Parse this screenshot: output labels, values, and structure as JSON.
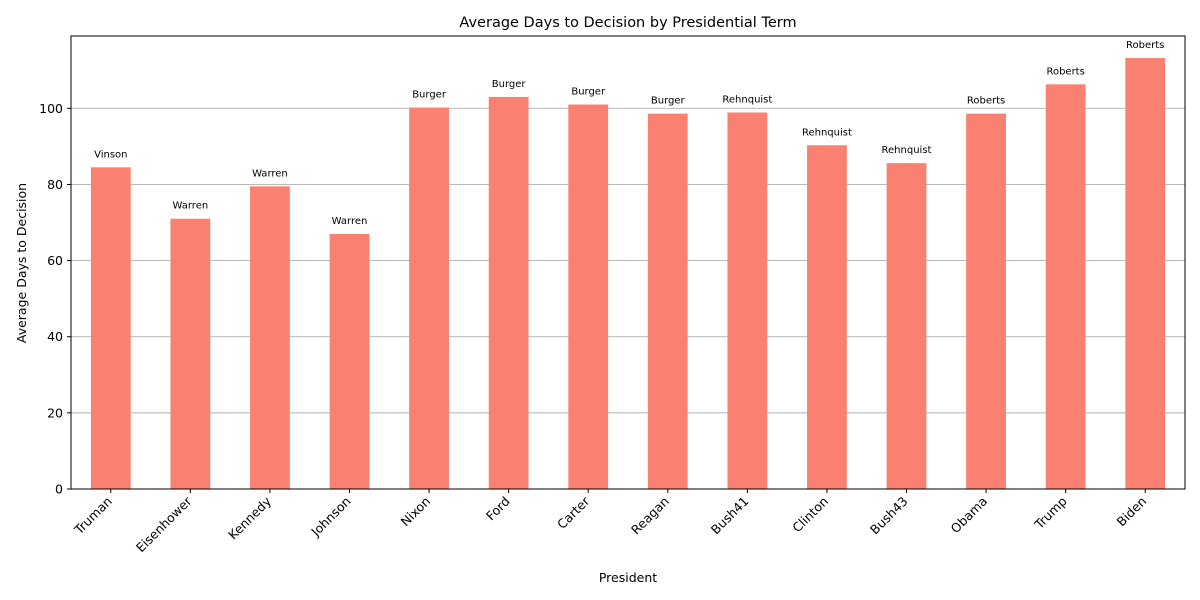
{
  "chart_data": {
    "type": "bar",
    "title": "Average Days to Decision by Presidential Term",
    "xlabel": "President",
    "ylabel": "Average Days to Decision",
    "categories": [
      "Truman",
      "Eisenhower",
      "Kennedy",
      "Johnson",
      "Nixon",
      "Ford",
      "Carter",
      "Reagan",
      "Bush41",
      "Clinton",
      "Bush43",
      "Obama",
      "Trump",
      "Biden"
    ],
    "values": [
      84.5,
      71.0,
      79.5,
      67.0,
      100.2,
      103.0,
      101.0,
      98.6,
      98.9,
      90.3,
      85.6,
      98.6,
      106.3,
      113.2
    ],
    "bar_labels": [
      "Vinson",
      "Warren",
      "Warren",
      "Warren",
      "Burger",
      "Burger",
      "Burger",
      "Burger",
      "Rehnquist",
      "Rehnquist",
      "Rehnquist",
      "Roberts",
      "Roberts",
      "Roberts"
    ],
    "ylim": [
      0,
      119
    ],
    "yticks": [
      0,
      20,
      40,
      60,
      80,
      100
    ],
    "grid": "y-axis",
    "bar_color": "#fa8072",
    "xtick_rotation": 45
  }
}
